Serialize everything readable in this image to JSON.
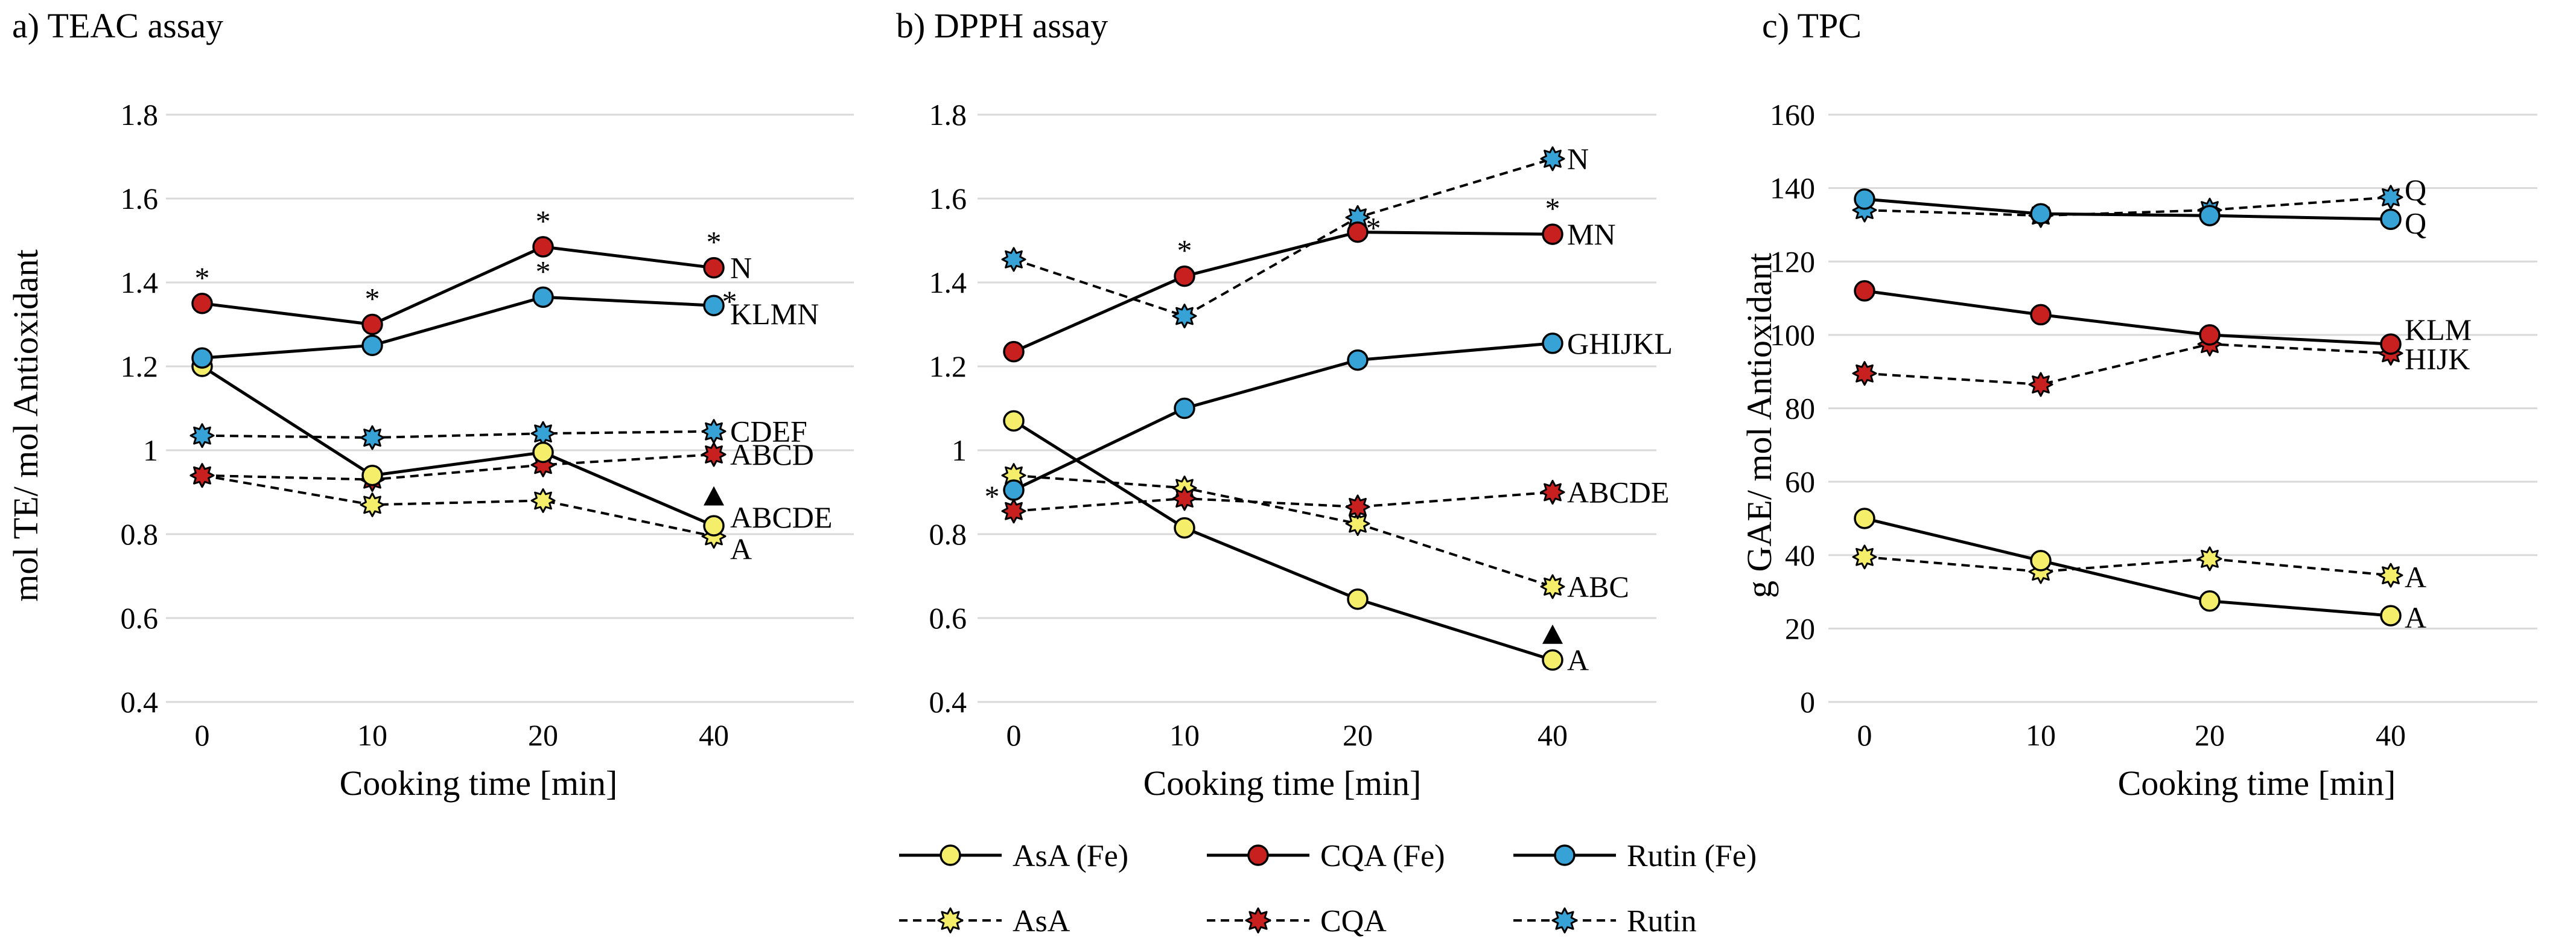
{
  "colors": {
    "asa": "#f4ee6b",
    "cqa": "#c8201e",
    "rutin": "#37a2d6",
    "line": "#000000",
    "grid": "#d9d9d9"
  },
  "series_meta": [
    {
      "key": "asa_fe",
      "name": "AsA (Fe)",
      "color": "#f4ee6b",
      "dashed": false,
      "marker": "circle"
    },
    {
      "key": "cqa_fe",
      "name": "CQA (Fe)",
      "color": "#c8201e",
      "dashed": false,
      "marker": "circle"
    },
    {
      "key": "rutin_fe",
      "name": "Rutin (Fe)",
      "color": "#37a2d6",
      "dashed": false,
      "marker": "circle"
    },
    {
      "key": "asa",
      "name": "AsA",
      "color": "#f4ee6b",
      "dashed": true,
      "marker": "star"
    },
    {
      "key": "cqa",
      "name": "CQA",
      "color": "#c8201e",
      "dashed": true,
      "marker": "star"
    },
    {
      "key": "rutin",
      "name": "Rutin",
      "color": "#37a2d6",
      "dashed": true,
      "marker": "star"
    }
  ],
  "chart_data": [
    {
      "type": "line",
      "title": "a) TEAC assay",
      "xlabel": "Cooking time [min]",
      "ylabel": "mol TE/ mol Antioxidant",
      "categories": [
        "0",
        "10",
        "20",
        "40"
      ],
      "ylim": [
        0.4,
        1.8
      ],
      "yticks": [
        0.4,
        0.6,
        0.8,
        1,
        1.2,
        1.4,
        1.6,
        1.8
      ],
      "ytick_labels": [
        "0.4",
        "0.6",
        "0.8",
        "1",
        "1.2",
        "1.4",
        "1.6",
        "1.8"
      ],
      "grid": true,
      "series": [
        {
          "key": "asa_fe",
          "name": "AsA (Fe)",
          "values": [
            1.2,
            0.94,
            0.995,
            0.82
          ]
        },
        {
          "key": "cqa_fe",
          "name": "CQA (Fe)",
          "values": [
            1.35,
            1.3,
            1.485,
            1.435
          ]
        },
        {
          "key": "rutin_fe",
          "name": "Rutin (Fe)",
          "values": [
            1.22,
            1.25,
            1.365,
            1.345
          ]
        },
        {
          "key": "asa",
          "name": "AsA",
          "values": [
            0.94,
            0.87,
            0.88,
            0.795
          ]
        },
        {
          "key": "cqa",
          "name": "CQA",
          "values": [
            0.94,
            0.93,
            0.965,
            0.99
          ]
        },
        {
          "key": "rutin",
          "name": "Rutin",
          "values": [
            1.035,
            1.03,
            1.04,
            1.045
          ]
        }
      ],
      "stars": [
        {
          "x": 0,
          "y": 1.35,
          "text": "*"
        },
        {
          "x": 1,
          "y": 1.3,
          "text": "*"
        },
        {
          "x": 2,
          "y": 1.485,
          "text": "*"
        },
        {
          "x": 2,
          "y": 1.365,
          "text": "*"
        },
        {
          "x": 3,
          "y": 1.435,
          "text": "*"
        },
        {
          "x": 3,
          "y": 1.345,
          "text": "*",
          "side": "right"
        }
      ],
      "triangles": [
        {
          "x": 3,
          "y": 0.89
        }
      ],
      "labels": [
        {
          "y": 1.435,
          "text": "N"
        },
        {
          "y": 1.325,
          "text": "KLMN"
        },
        {
          "y": 1.045,
          "text": "CDEF"
        },
        {
          "y": 0.99,
          "text": "ABCD"
        },
        {
          "y": 0.84,
          "text": "ABCDE"
        },
        {
          "y": 0.765,
          "text": "A"
        }
      ]
    },
    {
      "type": "line",
      "title": "b) DPPH assay",
      "xlabel": "Cooking time [min]",
      "ylabel": "",
      "categories": [
        "0",
        "10",
        "20",
        "40"
      ],
      "ylim": [
        0.4,
        1.8
      ],
      "yticks": [
        0.4,
        0.6,
        0.8,
        1,
        1.2,
        1.4,
        1.6,
        1.8
      ],
      "ytick_labels": [
        "0.4",
        "0.6",
        "0.8",
        "1",
        "1.2",
        "1.4",
        "1.6",
        "1.8"
      ],
      "grid": true,
      "series": [
        {
          "key": "asa_fe",
          "name": "AsA (Fe)",
          "values": [
            1.07,
            0.815,
            0.645,
            0.5
          ]
        },
        {
          "key": "cqa_fe",
          "name": "CQA (Fe)",
          "values": [
            1.235,
            1.415,
            1.52,
            1.515
          ]
        },
        {
          "key": "rutin_fe",
          "name": "Rutin (Fe)",
          "values": [
            0.905,
            1.1,
            1.215,
            1.255
          ]
        },
        {
          "key": "asa",
          "name": "AsA",
          "values": [
            0.94,
            0.91,
            0.825,
            0.675
          ]
        },
        {
          "key": "cqa",
          "name": "CQA",
          "values": [
            0.855,
            0.885,
            0.865,
            0.9
          ]
        },
        {
          "key": "rutin",
          "name": "Rutin",
          "values": [
            1.455,
            1.32,
            1.555,
            1.695
          ]
        }
      ],
      "stars": [
        {
          "x": 0,
          "y": 0.875,
          "text": "*",
          "side": "left"
        },
        {
          "x": 1,
          "y": 1.415,
          "text": "*"
        },
        {
          "x": 2,
          "y": 1.52,
          "text": "*",
          "side": "right"
        },
        {
          "x": 3,
          "y": 1.515,
          "text": "*"
        }
      ],
      "triangles": [
        {
          "x": 3,
          "y": 0.56
        }
      ],
      "labels": [
        {
          "y": 1.695,
          "text": "N"
        },
        {
          "y": 1.515,
          "text": "MN"
        },
        {
          "y": 1.255,
          "text": "GHIJKL"
        },
        {
          "y": 0.9,
          "text": "ABCDE"
        },
        {
          "y": 0.675,
          "text": "ABC"
        },
        {
          "y": 0.5,
          "text": "A"
        }
      ]
    },
    {
      "type": "line",
      "title": "c) TPC",
      "xlabel": "Cooking time [min]",
      "ylabel": "g GAE/ mol Antioxidant",
      "categories": [
        "0",
        "10",
        "20",
        "40"
      ],
      "ylim": [
        0,
        160
      ],
      "yticks": [
        0,
        20,
        40,
        60,
        80,
        100,
        120,
        140,
        160
      ],
      "ytick_labels": [
        "0",
        "20",
        "40",
        "60",
        "80",
        "100",
        "120",
        "140",
        "160"
      ],
      "grid": true,
      "series": [
        {
          "key": "asa_fe",
          "name": "AsA (Fe)",
          "values": [
            50,
            38.5,
            27.5,
            23.5
          ]
        },
        {
          "key": "cqa_fe",
          "name": "CQA (Fe)",
          "values": [
            112,
            105.5,
            100,
            97.5
          ]
        },
        {
          "key": "rutin_fe",
          "name": "Rutin (Fe)",
          "values": [
            137,
            133,
            132.5,
            131.5
          ]
        },
        {
          "key": "asa",
          "name": "AsA",
          "values": [
            39.5,
            35.5,
            39,
            34.5
          ]
        },
        {
          "key": "cqa",
          "name": "CQA",
          "values": [
            89.5,
            86.5,
            97.5,
            95
          ]
        },
        {
          "key": "rutin",
          "name": "Rutin",
          "values": [
            134,
            132.5,
            134,
            137.5
          ]
        }
      ],
      "stars": [],
      "triangles": [],
      "labels": [
        {
          "y": 139.5,
          "text": "Q"
        },
        {
          "y": 130.5,
          "text": "Q"
        },
        {
          "y": 101.5,
          "text": "KLM"
        },
        {
          "y": 93.5,
          "text": "HIJK"
        },
        {
          "y": 34,
          "text": "A"
        },
        {
          "y": 23,
          "text": "A"
        }
      ]
    }
  ]
}
